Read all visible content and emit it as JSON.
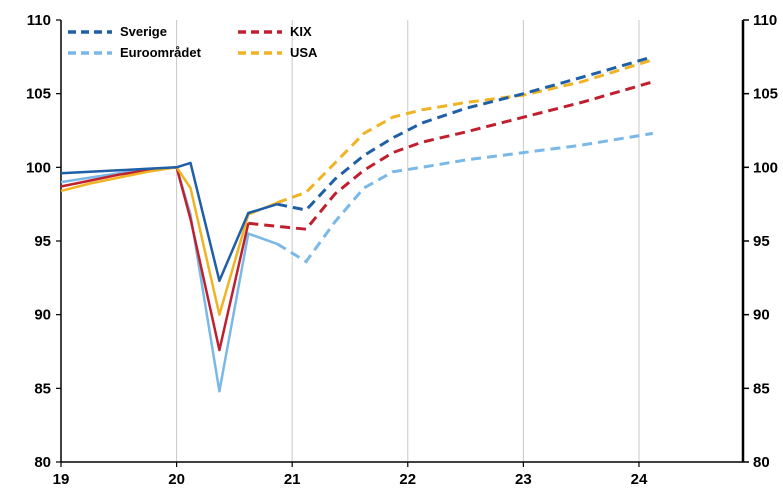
{
  "chart_data": {
    "type": "line",
    "title": "",
    "xlabel": "",
    "ylabel": "",
    "xlim": [
      19,
      24.9
    ],
    "ylim": [
      80,
      110
    ],
    "x_ticks": [
      19,
      20,
      21,
      22,
      23,
      24
    ],
    "y_ticks": [
      80,
      85,
      90,
      95,
      100,
      105,
      110
    ],
    "y_axes": [
      "left",
      "right"
    ],
    "grid": "vertical",
    "legend_position": "top-left",
    "series": [
      {
        "name": "Sverige",
        "color": "#1f5fa8",
        "outcome": [
          [
            19.0,
            99.6
          ],
          [
            19.25,
            99.7
          ],
          [
            19.5,
            99.8
          ],
          [
            19.75,
            99.9
          ],
          [
            20.0,
            100.0
          ],
          [
            20.12,
            100.3
          ],
          [
            20.37,
            92.3
          ],
          [
            20.62,
            96.9
          ],
          [
            20.87,
            97.5
          ]
        ],
        "forecast": [
          [
            20.87,
            97.5
          ],
          [
            21.12,
            97.1
          ],
          [
            21.37,
            99.2
          ],
          [
            21.62,
            100.8
          ],
          [
            21.87,
            102.0
          ],
          [
            22.12,
            103.0
          ],
          [
            22.5,
            104.0
          ],
          [
            23.0,
            105.0
          ],
          [
            23.5,
            106.1
          ],
          [
            24.12,
            107.5
          ]
        ]
      },
      {
        "name": "Euroområdet",
        "color": "#7ab8e8",
        "outcome": [
          [
            19.0,
            99.0
          ],
          [
            19.25,
            99.3
          ],
          [
            19.5,
            99.6
          ],
          [
            19.75,
            99.8
          ],
          [
            20.0,
            100.0
          ],
          [
            20.12,
            96.8
          ],
          [
            20.37,
            84.8
          ],
          [
            20.62,
            95.5
          ],
          [
            20.87,
            94.8
          ]
        ],
        "forecast": [
          [
            20.87,
            94.8
          ],
          [
            21.12,
            93.6
          ],
          [
            21.37,
            96.3
          ],
          [
            21.62,
            98.6
          ],
          [
            21.87,
            99.7
          ],
          [
            22.12,
            100.0
          ],
          [
            22.5,
            100.5
          ],
          [
            23.0,
            101.0
          ],
          [
            23.5,
            101.5
          ],
          [
            24.12,
            102.3
          ]
        ]
      },
      {
        "name": "KIX",
        "color": "#c0202e",
        "outcome": [
          [
            19.0,
            98.7
          ],
          [
            19.25,
            99.1
          ],
          [
            19.5,
            99.5
          ],
          [
            19.75,
            99.8
          ],
          [
            20.0,
            100.0
          ],
          [
            20.12,
            96.5
          ],
          [
            20.37,
            87.6
          ],
          [
            20.62,
            96.2
          ]
        ],
        "forecast": [
          [
            20.62,
            96.2
          ],
          [
            20.87,
            96.0
          ],
          [
            21.12,
            95.8
          ],
          [
            21.37,
            98.2
          ],
          [
            21.62,
            99.8
          ],
          [
            21.87,
            101.0
          ],
          [
            22.12,
            101.7
          ],
          [
            22.5,
            102.4
          ],
          [
            23.0,
            103.4
          ],
          [
            23.5,
            104.4
          ],
          [
            24.12,
            105.8
          ]
        ]
      },
      {
        "name": "USA",
        "color": "#f0b323",
        "outcome": [
          [
            19.0,
            98.4
          ],
          [
            19.25,
            98.9
          ],
          [
            19.5,
            99.3
          ],
          [
            19.75,
            99.7
          ],
          [
            20.0,
            100.0
          ],
          [
            20.12,
            98.6
          ],
          [
            20.37,
            90.0
          ],
          [
            20.62,
            96.8
          ],
          [
            20.87,
            97.6
          ]
        ],
        "forecast": [
          [
            20.87,
            97.6
          ],
          [
            21.12,
            98.3
          ],
          [
            21.37,
            100.3
          ],
          [
            21.62,
            102.3
          ],
          [
            21.87,
            103.4
          ],
          [
            22.12,
            103.9
          ],
          [
            22.5,
            104.4
          ],
          [
            23.0,
            104.9
          ],
          [
            23.5,
            105.8
          ],
          [
            24.12,
            107.3
          ]
        ]
      }
    ]
  }
}
